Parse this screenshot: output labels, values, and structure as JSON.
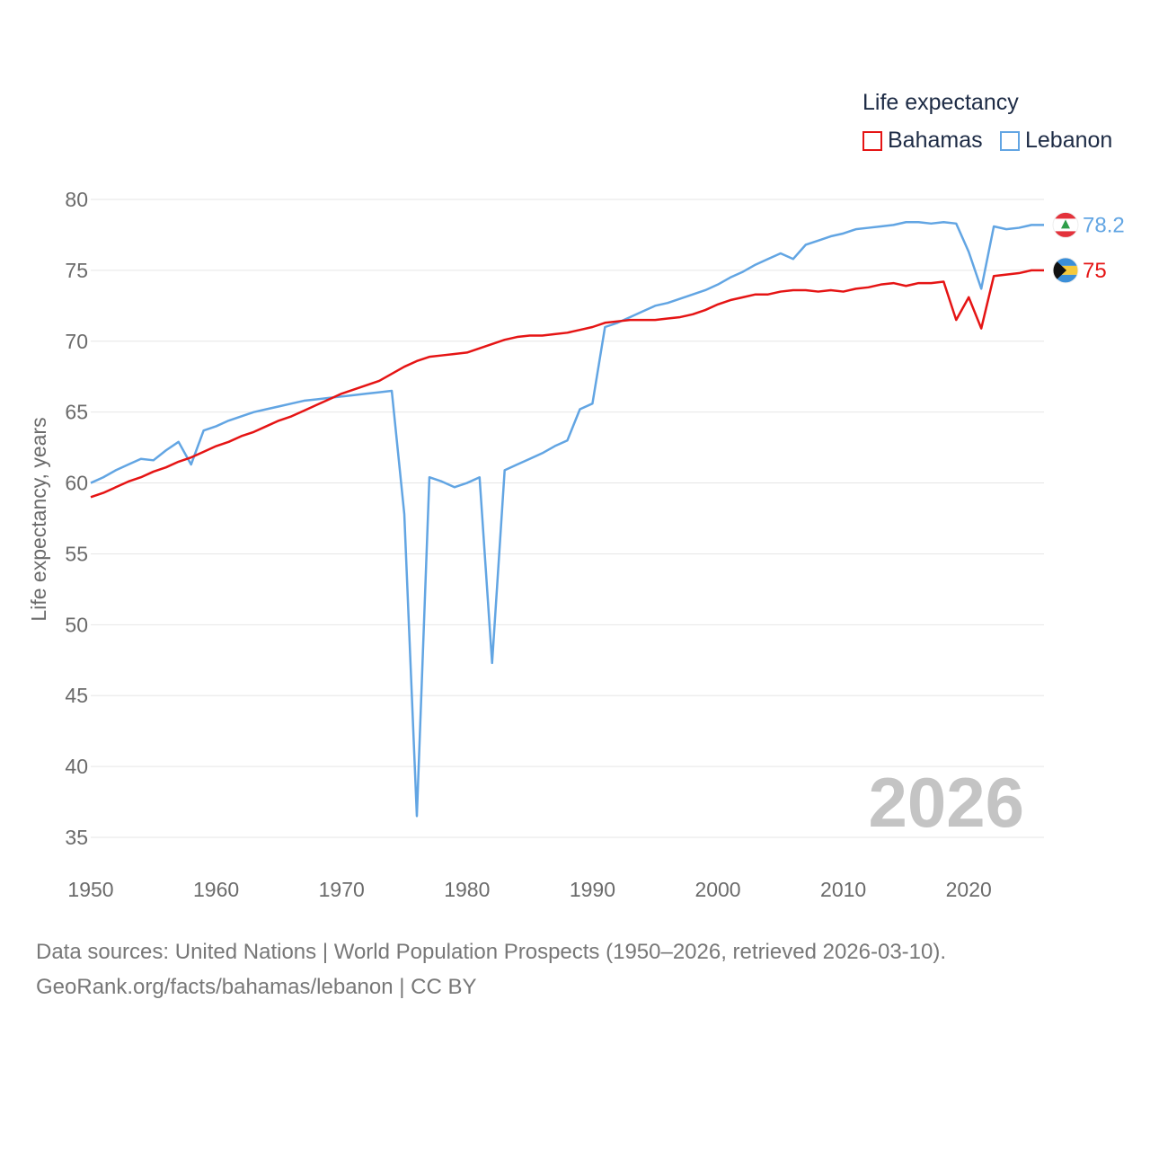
{
  "legend": {
    "title": "Life expectancy",
    "items": [
      {
        "label": "Bahamas",
        "color": "#e51414"
      },
      {
        "label": "Lebanon",
        "color": "#62a5e3"
      }
    ]
  },
  "watermark_year": "2026",
  "footer": {
    "line1": "Data sources: United Nations | World Population Prospects (1950–2026, retrieved 2026-03-10).",
    "line2": "GeoRank.org/facts/bahamas/lebanon | CC BY"
  },
  "chart_data": {
    "type": "line",
    "title": "Life expectancy",
    "xlabel": "",
    "ylabel": "Life expectancy, years",
    "xlim": [
      1950,
      2026
    ],
    "ylim": [
      34,
      81
    ],
    "x_ticks": [
      1950,
      1960,
      1970,
      1980,
      1990,
      2000,
      2010,
      2020
    ],
    "y_ticks": [
      35,
      40,
      45,
      50,
      55,
      60,
      65,
      70,
      75,
      80
    ],
    "grid": true,
    "legend_position": "top-right",
    "x": [
      1950,
      1951,
      1952,
      1953,
      1954,
      1955,
      1956,
      1957,
      1958,
      1959,
      1960,
      1961,
      1962,
      1963,
      1964,
      1965,
      1966,
      1967,
      1968,
      1969,
      1970,
      1971,
      1972,
      1973,
      1974,
      1975,
      1976,
      1977,
      1978,
      1979,
      1980,
      1981,
      1982,
      1983,
      1984,
      1985,
      1986,
      1987,
      1988,
      1989,
      1990,
      1991,
      1992,
      1993,
      1994,
      1995,
      1996,
      1997,
      1998,
      1999,
      2000,
      2001,
      2002,
      2003,
      2004,
      2005,
      2006,
      2007,
      2008,
      2009,
      2010,
      2011,
      2012,
      2013,
      2014,
      2015,
      2016,
      2017,
      2018,
      2019,
      2020,
      2021,
      2022,
      2023,
      2024,
      2025,
      2026
    ],
    "series": [
      {
        "name": "Bahamas",
        "color": "#e51414",
        "end_label": "75",
        "flag": "bahamas-flag-icon",
        "values": [
          59.0,
          59.3,
          59.7,
          60.1,
          60.4,
          60.8,
          61.1,
          61.5,
          61.8,
          62.2,
          62.6,
          62.9,
          63.3,
          63.6,
          64.0,
          64.4,
          64.7,
          65.1,
          65.5,
          65.9,
          66.3,
          66.6,
          66.9,
          67.2,
          67.7,
          68.2,
          68.6,
          68.9,
          69.0,
          69.1,
          69.2,
          69.5,
          69.8,
          70.1,
          70.3,
          70.4,
          70.4,
          70.5,
          70.6,
          70.8,
          71.0,
          71.3,
          71.4,
          71.5,
          71.5,
          71.5,
          71.6,
          71.7,
          71.9,
          72.2,
          72.6,
          72.9,
          73.1,
          73.3,
          73.3,
          73.5,
          73.6,
          73.6,
          73.5,
          73.6,
          73.5,
          73.7,
          73.8,
          74.0,
          74.1,
          73.9,
          74.1,
          74.1,
          74.2,
          71.5,
          73.1,
          70.9,
          74.6,
          74.7,
          74.8,
          75.0,
          75.0
        ]
      },
      {
        "name": "Lebanon",
        "color": "#62a5e3",
        "end_label": "78.2",
        "flag": "lebanon-flag-icon",
        "values": [
          60.0,
          60.4,
          60.9,
          61.3,
          61.7,
          61.6,
          62.3,
          62.9,
          61.3,
          63.7,
          64.0,
          64.4,
          64.7,
          65.0,
          65.2,
          65.4,
          65.6,
          65.8,
          65.9,
          66.0,
          66.1,
          66.2,
          66.3,
          66.4,
          66.5,
          57.8,
          36.5,
          60.4,
          60.1,
          59.7,
          60.0,
          60.4,
          47.3,
          60.9,
          61.3,
          61.7,
          62.1,
          62.6,
          63.0,
          65.2,
          65.6,
          71.0,
          71.3,
          71.7,
          72.1,
          72.5,
          72.7,
          73.0,
          73.3,
          73.6,
          74.0,
          74.5,
          74.9,
          75.4,
          75.8,
          76.2,
          75.8,
          76.8,
          77.1,
          77.4,
          77.6,
          77.9,
          78.0,
          78.1,
          78.2,
          78.4,
          78.4,
          78.3,
          78.4,
          78.3,
          76.3,
          73.7,
          78.1,
          77.9,
          78.0,
          78.2,
          78.2
        ]
      }
    ]
  }
}
